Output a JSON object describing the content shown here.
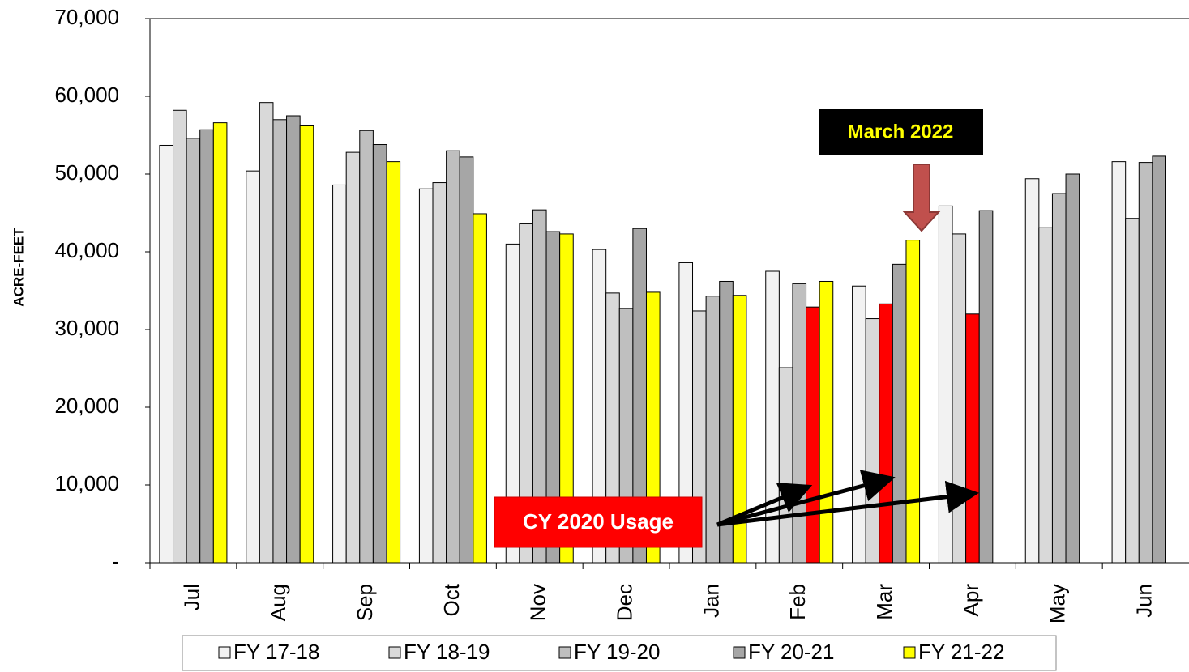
{
  "chart_data": {
    "type": "bar",
    "y_label": "ACRE-FEET",
    "categories": [
      "Jul",
      "Aug",
      "Sep",
      "Oct",
      "Nov",
      "Dec",
      "Jan",
      "Feb",
      "Mar",
      "Apr",
      "May",
      "Jun"
    ],
    "series": [
      {
        "name": "FY 17-18",
        "color": "#f2f2f2",
        "values": [
          53700,
          50400,
          48600,
          48100,
          41000,
          40300,
          38600,
          37500,
          35600,
          45900,
          49400,
          51600
        ]
      },
      {
        "name": "FY 18-19",
        "color": "#d9d9d9",
        "values": [
          58200,
          59200,
          52800,
          48900,
          43600,
          34700,
          32400,
          25100,
          31400,
          42300,
          43100,
          44300
        ]
      },
      {
        "name": "FY 19-20",
        "color": "#bfbfbf",
        "values": [
          54600,
          57000,
          55600,
          53000,
          45400,
          32700,
          34300,
          35900,
          33300,
          32000,
          47500,
          51500
        ],
        "point_colors": [
          null,
          null,
          null,
          null,
          null,
          null,
          null,
          null,
          "#ff0000",
          "#ff0000",
          null,
          null
        ]
      },
      {
        "name": "FY 20-21",
        "color": "#a6a6a6",
        "values": [
          55700,
          57500,
          53800,
          52200,
          42600,
          43000,
          36200,
          32900,
          38400,
          45300,
          50000,
          52300
        ],
        "point_colors": [
          null,
          null,
          null,
          null,
          null,
          null,
          null,
          "#ff0000",
          null,
          null,
          null,
          null
        ]
      },
      {
        "name": "FY 21-22",
        "color": "#ffff00",
        "values": [
          56600,
          56200,
          51600,
          44900,
          42300,
          34800,
          34400,
          36200,
          41500,
          null,
          null,
          null
        ]
      }
    ],
    "ylim": [
      0,
      70000
    ],
    "yticks": [
      {
        "value": 0,
        "label": "-"
      },
      {
        "value": 10000,
        "label": "10,000"
      },
      {
        "value": 20000,
        "label": "20,000"
      },
      {
        "value": 30000,
        "label": "30,000"
      },
      {
        "value": 40000,
        "label": "40,000"
      },
      {
        "value": 50000,
        "label": "50,000"
      },
      {
        "value": 60000,
        "label": "60,000"
      },
      {
        "value": 70000,
        "label": "70,000"
      }
    ],
    "grid": false,
    "legend": "bottom",
    "annotations": [
      {
        "text": "March 2022"
      },
      {
        "text": "CY 2020 Usage"
      }
    ]
  }
}
